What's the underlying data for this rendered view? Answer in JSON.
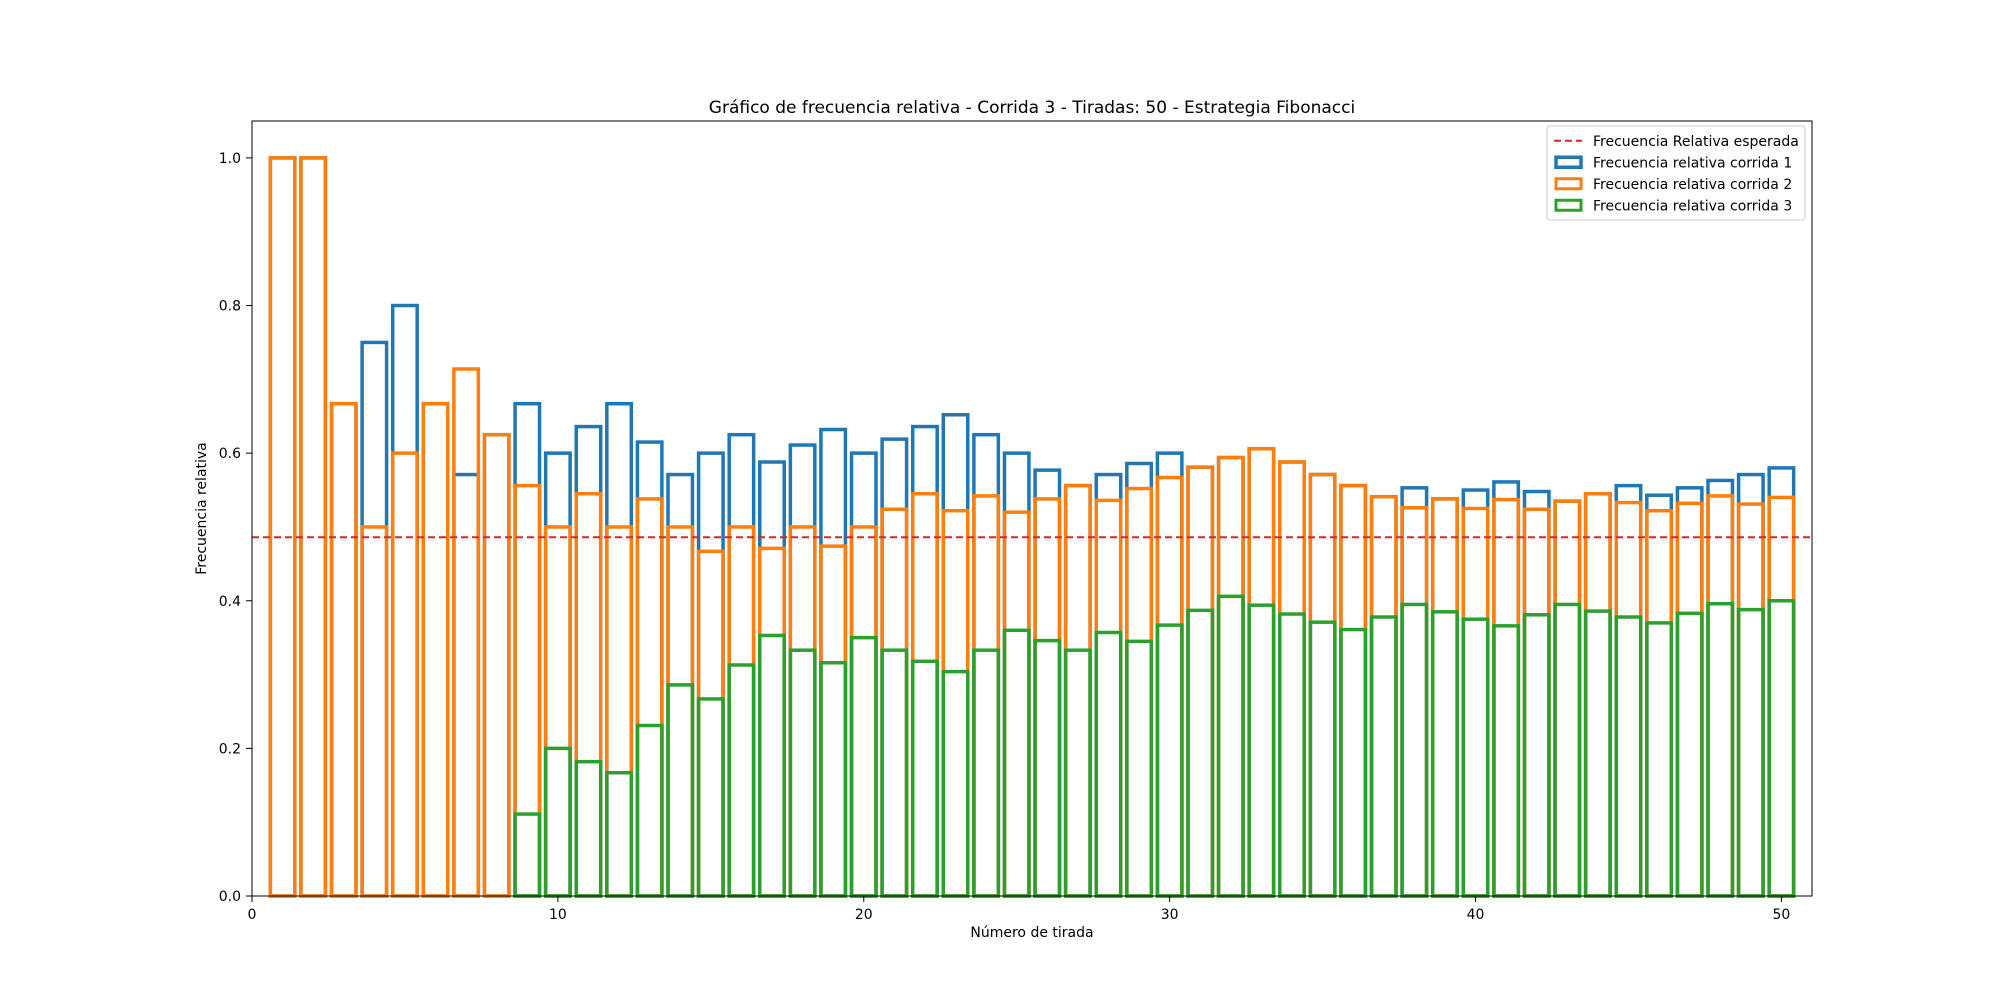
{
  "chart_data": {
    "type": "bar",
    "title": "Gráfico de frecuencia relativa - Corrida 3 - Tiradas: 50 - Estrategia Fibonacci",
    "xlabel": "Número de tirada",
    "ylabel": "Frecuencia relativa",
    "xlim": [
      0,
      51
    ],
    "ylim": [
      0,
      1.05
    ],
    "xticks": [
      0,
      10,
      20,
      30,
      40,
      50
    ],
    "yticks": [
      0.0,
      0.2,
      0.4,
      0.6,
      0.8,
      1.0
    ],
    "x": [
      1,
      2,
      3,
      4,
      5,
      6,
      7,
      8,
      9,
      10,
      11,
      12,
      13,
      14,
      15,
      16,
      17,
      18,
      19,
      20,
      21,
      22,
      23,
      24,
      25,
      26,
      27,
      28,
      29,
      30,
      31,
      32,
      33,
      34,
      35,
      36,
      37,
      38,
      39,
      40,
      41,
      42,
      43,
      44,
      45,
      46,
      47,
      48,
      49,
      50
    ],
    "grid": false,
    "legend_position": "top-right",
    "expected_line": {
      "name": "Frecuencia Relativa esperada",
      "value": 0.486,
      "color": "#d62728",
      "style": "dashed"
    },
    "series": [
      {
        "name": "Frecuencia relativa corrida 1",
        "color": "#1f77b4",
        "values": [
          1.0,
          1.0,
          0.667,
          0.75,
          0.8,
          0.667,
          0.571,
          0.625,
          0.667,
          0.6,
          0.636,
          0.667,
          0.615,
          0.571,
          0.6,
          0.625,
          0.588,
          0.611,
          0.632,
          0.6,
          0.619,
          0.636,
          0.652,
          0.625,
          0.6,
          0.577,
          0.556,
          0.571,
          0.586,
          0.6,
          0.581,
          0.594,
          0.606,
          0.588,
          0.571,
          0.556,
          0.541,
          0.553,
          0.538,
          0.55,
          0.561,
          0.548,
          0.535,
          0.545,
          0.556,
          0.543,
          0.553,
          0.563,
          0.571,
          0.58
        ]
      },
      {
        "name": "Frecuencia relativa corrida 2",
        "color": "#ff7f0e",
        "values": [
          1.0,
          1.0,
          0.667,
          0.5,
          0.6,
          0.667,
          0.714,
          0.625,
          0.556,
          0.5,
          0.545,
          0.5,
          0.538,
          0.5,
          0.467,
          0.5,
          0.471,
          0.5,
          0.474,
          0.5,
          0.524,
          0.545,
          0.522,
          0.542,
          0.52,
          0.538,
          0.556,
          0.536,
          0.552,
          0.567,
          0.581,
          0.594,
          0.606,
          0.588,
          0.571,
          0.556,
          0.541,
          0.526,
          0.538,
          0.525,
          0.537,
          0.524,
          0.535,
          0.545,
          0.533,
          0.522,
          0.532,
          0.542,
          0.531,
          0.54
        ]
      },
      {
        "name": "Frecuencia relativa corrida 3",
        "color": "#2ca02c",
        "values": [
          0.0,
          0.0,
          0.0,
          0.0,
          0.0,
          0.0,
          0.0,
          0.0,
          0.111,
          0.2,
          0.182,
          0.167,
          0.231,
          0.286,
          0.267,
          0.313,
          0.353,
          0.333,
          0.316,
          0.35,
          0.333,
          0.318,
          0.304,
          0.333,
          0.36,
          0.346,
          0.333,
          0.357,
          0.345,
          0.367,
          0.387,
          0.406,
          0.394,
          0.382,
          0.371,
          0.361,
          0.378,
          0.395,
          0.385,
          0.375,
          0.366,
          0.381,
          0.395,
          0.386,
          0.378,
          0.37,
          0.383,
          0.396,
          0.388,
          0.4
        ]
      }
    ]
  }
}
